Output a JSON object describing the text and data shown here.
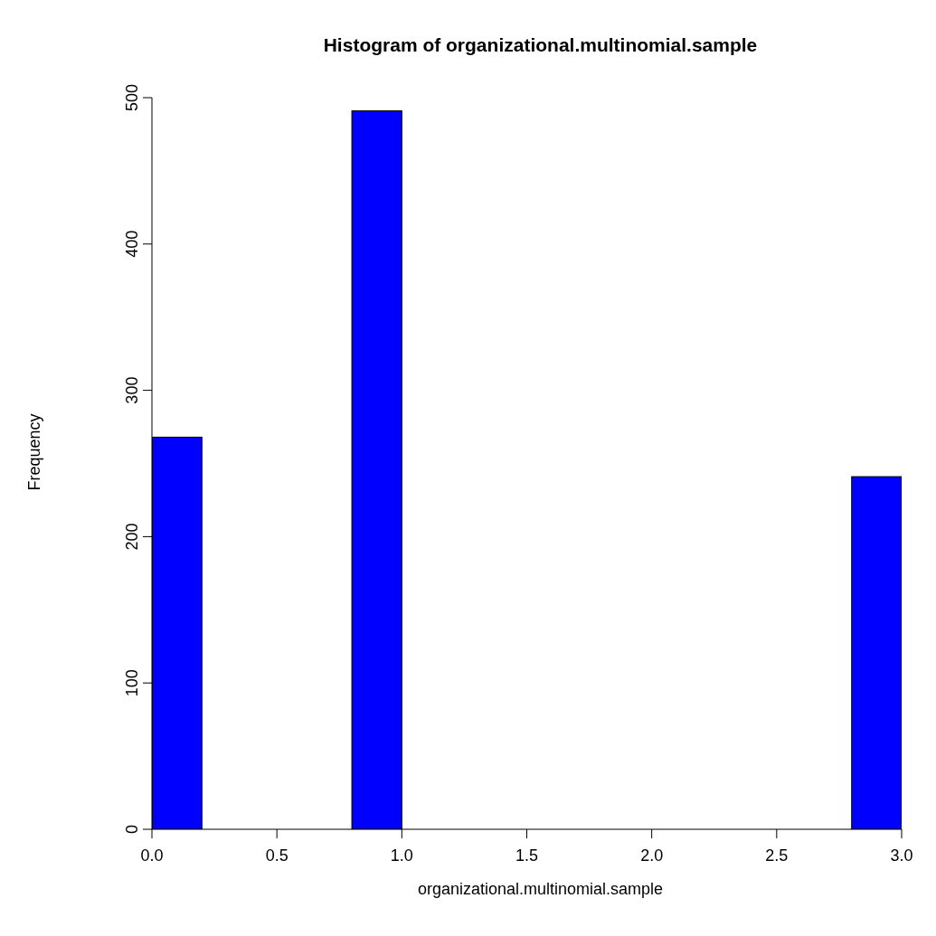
{
  "chart_data": {
    "type": "histogram",
    "title": "Histogram of organizational.multinomial.sample",
    "xlabel": "organizational.multinomial.sample",
    "ylabel": "Frequency",
    "bins": [
      0,
      0.2,
      0.4,
      0.6,
      0.8,
      1.0,
      1.2,
      1.4,
      1.6,
      1.8,
      2.0,
      2.2,
      2.4,
      2.6,
      2.8,
      3.0
    ],
    "values": [
      268,
      0,
      0,
      0,
      491,
      0,
      0,
      0,
      0,
      0,
      0,
      0,
      0,
      0,
      241
    ],
    "color": "#0000ff",
    "xlim": [
      0,
      3
    ],
    "xticks": [
      {
        "value": 0,
        "label": "0.0"
      },
      0.5,
      {
        "value": 1,
        "label": "1.0"
      },
      1.5,
      {
        "value": 2,
        "label": "2.0"
      },
      2.5,
      {
        "value": 3,
        "label": "3.0"
      }
    ],
    "ylim": [
      0,
      500
    ],
    "yticks": [
      0,
      100,
      200,
      300,
      400,
      500
    ],
    "grid": false,
    "legend": false
  }
}
